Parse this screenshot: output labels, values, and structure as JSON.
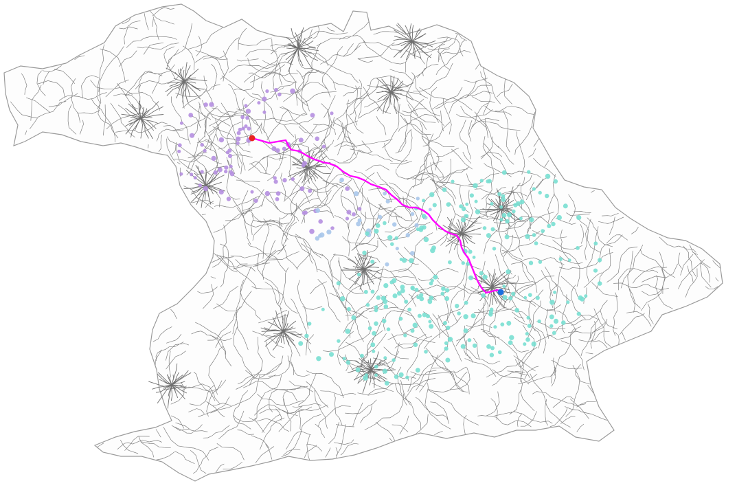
{
  "map": {
    "colors": {
      "background": "#ffffff",
      "road": "#808080",
      "route": "#ff00ff",
      "start_marker": "#e8231f",
      "end_marker": "#1a6fe0",
      "points_near_start": "#b58fe0",
      "points_mid": "#a8c7ea",
      "points_near_end": "#79dfd2"
    }
  }
}
